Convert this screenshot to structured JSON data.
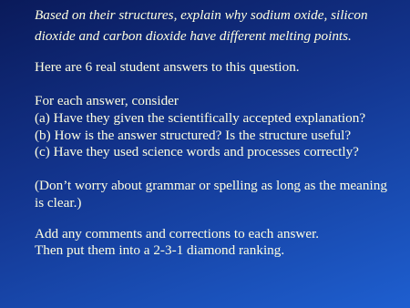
{
  "question": [
    "Based on their structures, explain why sodium oxide, silicon",
    "dioxide and carbon dioxide have different melting points."
  ],
  "intro": "Here are 6 real student answers to this question.",
  "instructions": {
    "heading": "For each answer, consider",
    "items": [
      "(a) Have they given the scientifically accepted explanation?",
      "(b) How is the answer structured?  Is the structure useful?",
      "(c) Have they used science words and processes correctly?"
    ]
  },
  "note": [
    "(Don’t worry about grammar or spelling as long as the meaning",
    "is clear.)"
  ],
  "tasks": [
    "Add any comments and corrections to each answer.",
    "Then put them into a 2-3-1 diamond ranking."
  ]
}
